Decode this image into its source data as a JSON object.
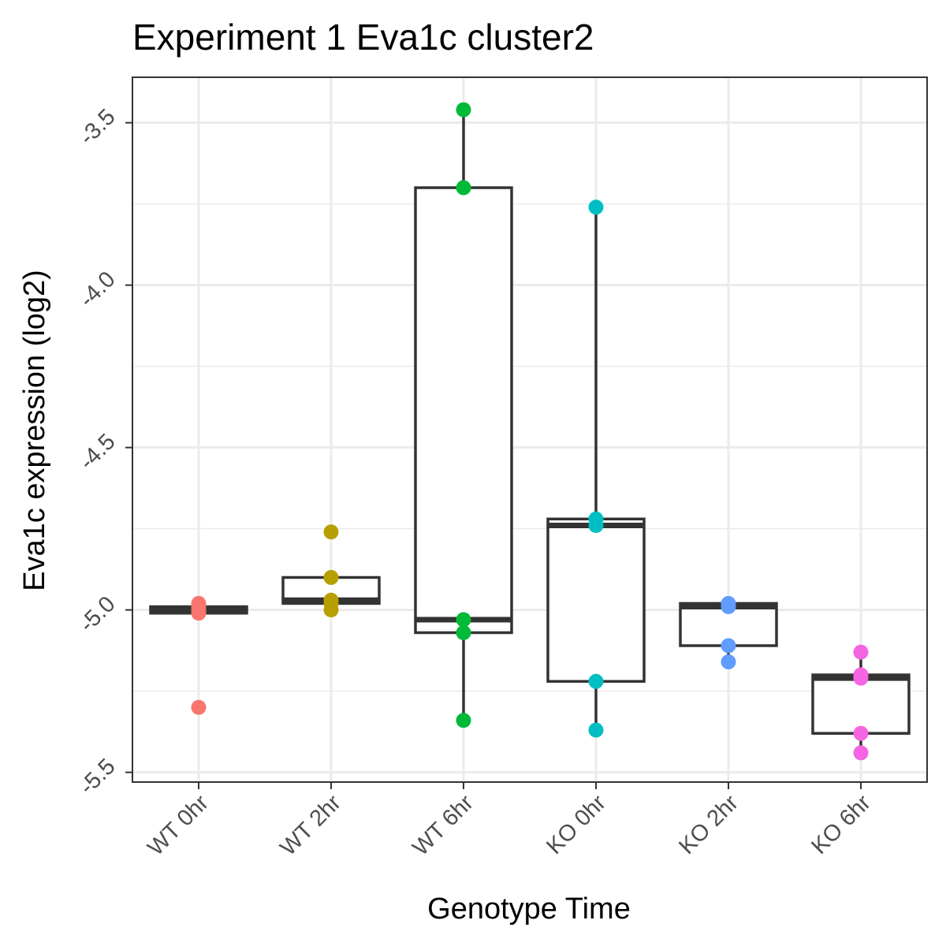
{
  "chart_data": {
    "type": "box",
    "title": "Experiment 1 Eva1c cluster2",
    "xlabel": "Genotype Time",
    "ylabel": "Eva1c expression (log2)",
    "ylim": [
      -5.53,
      -3.36
    ],
    "y_ticks": [
      -3.5,
      -4.0,
      -4.5,
      -5.0,
      -5.5
    ],
    "y_tick_labels": [
      "-3.5",
      "-4.0",
      "-4.5",
      "-5.0",
      "-5.5"
    ],
    "categories": [
      "WT 0hr",
      "WT 2hr",
      "WT 6hr",
      "KO 0hr",
      "KO 2hr",
      "KO 6hr"
    ],
    "grid": true,
    "legend": "none",
    "groups": [
      {
        "category": "WT 0hr",
        "color": "#F8766D",
        "points": [
          -4.98,
          -4.99,
          -5.0,
          -5.01,
          -5.3
        ],
        "q1": -5.01,
        "median": -5.0,
        "q3": -4.99,
        "whisker_low": -5.01,
        "whisker_high": -4.98
      },
      {
        "category": "WT 2hr",
        "color": "#B79F00",
        "points": [
          -4.76,
          -4.9,
          -4.97,
          -4.98,
          -5.0
        ],
        "q1": -4.98,
        "median": -4.97,
        "q3": -4.9,
        "whisker_low": -4.98,
        "whisker_high": -4.9
      },
      {
        "category": "WT 6hr",
        "color": "#00BA38",
        "points": [
          -3.46,
          -3.7,
          -5.03,
          -5.07,
          -5.34
        ],
        "q1": -5.07,
        "median": -5.03,
        "q3": -3.7,
        "whisker_low": -5.34,
        "whisker_high": -3.46
      },
      {
        "category": "KO 0hr",
        "color": "#00BFC4",
        "points": [
          -3.76,
          -4.72,
          -4.74,
          -5.22,
          -5.37
        ],
        "q1": -5.22,
        "median": -4.74,
        "q3": -4.72,
        "whisker_low": -5.37,
        "whisker_high": -3.76
      },
      {
        "category": "KO 2hr",
        "color": "#619CFF",
        "points": [
          -4.98,
          -4.99,
          -5.11,
          -5.16
        ],
        "q1": -5.11,
        "median": -4.99,
        "q3": -4.98,
        "whisker_low": -5.16,
        "whisker_high": -4.98
      },
      {
        "category": "KO 6hr",
        "color": "#F564E3",
        "points": [
          -5.13,
          -5.2,
          -5.21,
          -5.38,
          -5.44
        ],
        "q1": -5.38,
        "median": -5.21,
        "q3": -5.2,
        "whisker_low": -5.44,
        "whisker_high": -5.13
      }
    ]
  }
}
